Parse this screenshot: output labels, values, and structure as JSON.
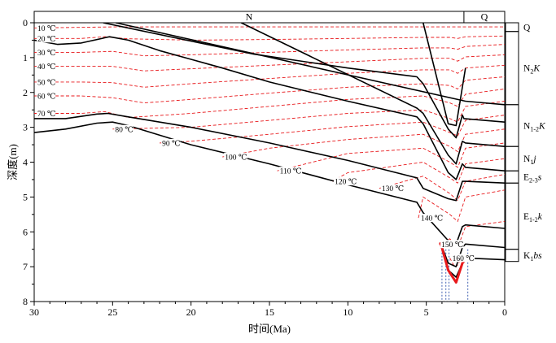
{
  "chart_data": {
    "type": "line",
    "title": "",
    "xlabel": "时间(Ma)",
    "ylabel": "深度(m)",
    "xlim": [
      30,
      0
    ],
    "ylim": [
      0,
      8
    ],
    "x_reversed": true,
    "y_reversed": true,
    "x_ticks": [
      30,
      25,
      20,
      15,
      10,
      5,
      0
    ],
    "y_ticks": [
      0,
      1,
      2,
      3,
      4,
      5,
      6,
      7,
      8
    ],
    "colors": {
      "burial_line": "#000000",
      "isotherm": "#e8191c",
      "source_rock": "#e8191c",
      "marker": "#2a4fa8"
    },
    "period_bar": [
      {
        "label": "N",
        "from": 30,
        "to": 2.6
      },
      {
        "label": "Q",
        "from": 2.6,
        "to": 0
      }
    ],
    "isotherms": [
      {
        "label": "10 ℃",
        "temp": 10,
        "x": [
          30,
          25,
          20,
          15,
          10,
          5.2,
          3.5,
          3,
          2.5,
          0
        ],
        "y": [
          0.15,
          0.12,
          0.12,
          0.12,
          0.12,
          0.12,
          0.12,
          0.12,
          0.12,
          0.12
        ]
      },
      {
        "label": "20 ℃",
        "temp": 20,
        "x": [
          30,
          27,
          25.5,
          24,
          20,
          15,
          10,
          5.2,
          3.5,
          3,
          2.5,
          0
        ],
        "y": [
          0.45,
          0.45,
          0.4,
          0.46,
          0.5,
          0.48,
          0.45,
          0.42,
          0.42,
          0.45,
          0.4,
          0.38
        ]
      },
      {
        "label": "30 ℃",
        "temp": 30,
        "x": [
          30,
          27,
          25,
          23,
          20,
          15,
          10,
          5.2,
          3.5,
          3,
          2.5,
          0
        ],
        "y": [
          0.85,
          0.85,
          0.82,
          0.95,
          0.92,
          0.85,
          0.78,
          0.72,
          0.72,
          0.76,
          0.68,
          0.62
        ]
      },
      {
        "label": "40 ℃",
        "temp": 40,
        "x": [
          30,
          27,
          25,
          23,
          20,
          15,
          10,
          5.2,
          3.5,
          3,
          2.5,
          0
        ],
        "y": [
          1.25,
          1.25,
          1.25,
          1.38,
          1.32,
          1.22,
          1.12,
          1.02,
          1.02,
          1.1,
          0.98,
          0.92
        ]
      },
      {
        "label": "50 ℃",
        "temp": 50,
        "x": [
          30,
          27,
          25,
          23,
          20,
          15,
          10,
          5.2,
          3.5,
          3,
          2.5,
          0
        ],
        "y": [
          1.7,
          1.7,
          1.72,
          1.85,
          1.75,
          1.6,
          1.45,
          1.35,
          1.35,
          1.45,
          1.3,
          1.22
        ]
      },
      {
        "label": "60 ℃",
        "temp": 60,
        "x": [
          30,
          27,
          25,
          23,
          20,
          15,
          10,
          5.2,
          3.5,
          3,
          2.5,
          0
        ],
        "y": [
          2.1,
          2.1,
          2.15,
          2.3,
          2.2,
          2.02,
          1.85,
          1.75,
          1.8,
          1.9,
          1.65,
          1.55
        ]
      },
      {
        "label": "70 ℃",
        "temp": 70,
        "x": [
          30,
          27,
          25.5,
          24,
          20,
          15,
          10,
          5.2,
          3.5,
          3,
          2.5,
          0
        ],
        "y": [
          2.6,
          2.6,
          2.55,
          2.72,
          2.6,
          2.4,
          2.2,
          2.1,
          2.3,
          2.4,
          2.05,
          1.9
        ]
      },
      {
        "label": "80 ℃",
        "temp": 80,
        "x": [
          25,
          20,
          15,
          10,
          5.2,
          3.5,
          3,
          2.5,
          0
        ],
        "y": [
          3.05,
          3.0,
          2.8,
          2.6,
          2.5,
          2.75,
          2.85,
          2.4,
          2.25
        ]
      },
      {
        "label": "90 ℃",
        "temp": 90,
        "x": [
          22,
          20,
          15,
          10,
          5.2,
          3.5,
          3,
          2.5,
          0
        ],
        "y": [
          3.45,
          3.4,
          3.2,
          2.98,
          2.85,
          3.15,
          3.25,
          2.8,
          2.65
        ]
      },
      {
        "label": "100 ℃",
        "temp": 100,
        "x": [
          18,
          15,
          10,
          5.2,
          3.5,
          3,
          2.5,
          0
        ],
        "y": [
          3.85,
          3.6,
          3.35,
          3.2,
          3.55,
          3.7,
          3.2,
          3.05
        ]
      },
      {
        "label": "110 ℃",
        "temp": 110,
        "x": [
          14.5,
          10,
          5.2,
          3.5,
          3,
          2.5,
          0
        ],
        "y": [
          4.25,
          3.75,
          3.6,
          4.0,
          4.15,
          3.6,
          3.45
        ]
      },
      {
        "label": "120 ℃",
        "temp": 120,
        "x": [
          11,
          10,
          5.2,
          3.5,
          3,
          2.5,
          0
        ],
        "y": [
          4.55,
          4.3,
          4.0,
          4.45,
          4.6,
          4.05,
          3.9
        ]
      },
      {
        "label": "130 ℃",
        "temp": 130,
        "x": [
          8,
          5.2,
          3.5,
          3,
          2.5,
          0
        ],
        "y": [
          4.75,
          4.4,
          4.9,
          5.1,
          4.55,
          4.35
        ]
      },
      {
        "label": "140 ℃",
        "temp": 140,
        "x": [
          5.5,
          5.2,
          3.5,
          3,
          2.5,
          0
        ],
        "y": [
          5.6,
          5.0,
          5.5,
          5.7,
          5.0,
          4.8
        ]
      },
      {
        "label": "150 ℃",
        "temp": 150,
        "x": [
          4.2,
          3.5,
          3,
          2.5,
          0
        ],
        "y": [
          6.35,
          6.2,
          6.45,
          5.85,
          5.7
        ]
      },
      {
        "label": "160 ℃",
        "temp": 160,
        "x": [
          3.5,
          3.2,
          3,
          2.7
        ],
        "y": [
          6.75,
          7.0,
          6.95,
          6.7
        ]
      }
    ],
    "burial_lines": [
      {
        "x": [
          5.2,
          3.6,
          3.1,
          2.5
        ],
        "y": [
          0,
          2.9,
          2.95,
          1.3
        ]
      },
      {
        "x": [
          24.8,
          2.5,
          0
        ],
        "y": [
          0,
          2.25,
          2.35
        ]
      },
      {
        "x": [
          25.6,
          16,
          10,
          5.6,
          5.2,
          3.6,
          3.1,
          2.7,
          2.6,
          0
        ],
        "y": [
          0,
          0.9,
          1.3,
          1.55,
          1.75,
          3.05,
          3.3,
          2.65,
          2.75,
          2.85
        ]
      },
      {
        "x": [
          16.8,
          5.6,
          5.2,
          3.6,
          3.1,
          2.7,
          2.5,
          0
        ],
        "y": [
          0,
          2.45,
          2.6,
          3.8,
          4.05,
          3.4,
          3.45,
          3.55
        ]
      },
      {
        "x": [
          30,
          28.5,
          27,
          25.2,
          24,
          22,
          20,
          18,
          15,
          10,
          5.6,
          5.2,
          3.6,
          3.1,
          2.7,
          2.5,
          0
        ],
        "y": [
          0.5,
          0.62,
          0.58,
          0.4,
          0.5,
          0.8,
          1.05,
          1.3,
          1.7,
          2.25,
          2.7,
          2.9,
          4.3,
          4.5,
          4.05,
          4.15,
          4.25
        ]
      },
      {
        "x": [
          30,
          28,
          26,
          25.3,
          24,
          20,
          15,
          10,
          5.6,
          5.2,
          3.6,
          3.1,
          2.7,
          2.5,
          0
        ],
        "y": [
          2.75,
          2.75,
          2.62,
          2.6,
          2.7,
          3.0,
          3.45,
          3.95,
          4.45,
          4.75,
          5.05,
          5.1,
          4.55,
          4.55,
          4.6
        ]
      },
      {
        "x": [
          30,
          28,
          26,
          25,
          24,
          20,
          15,
          10,
          5.6,
          5.2,
          3.6,
          3.1,
          2.7,
          2.5,
          0
        ],
        "y": [
          3.15,
          3.05,
          2.88,
          2.85,
          2.95,
          3.5,
          4.05,
          4.65,
          5.15,
          5.45,
          6.25,
          6.35,
          5.85,
          5.8,
          5.9
        ]
      },
      {
        "x": [
          4.1,
          3.6,
          3.1,
          2.7,
          2.5,
          0
        ],
        "y": [
          6.3,
          6.9,
          7.0,
          6.45,
          6.35,
          6.45
        ]
      },
      {
        "x": [
          3.6,
          3.1,
          2.7,
          2.5,
          0
        ],
        "y": [
          7.1,
          7.3,
          6.9,
          6.75,
          6.8
        ]
      }
    ],
    "source_rock_line": {
      "x": [
        4.1,
        3.6,
        3.1,
        2.7,
        2.4
      ],
      "y": [
        6.3,
        7.1,
        7.45,
        6.9,
        6.75
      ]
    },
    "marker_lines_x": [
      4.0,
      3.75,
      3.55,
      2.35
    ],
    "marker_bottom_y": 8,
    "strat_column": [
      {
        "label": "Q",
        "top": 0.0,
        "bottom": 0.25
      },
      {
        "label": "N2K",
        "top": 0.25,
        "bottom": 2.35
      },
      {
        "label": "N1-2K",
        "top": 2.35,
        "bottom": 3.55
      },
      {
        "label": "N1j",
        "top": 3.55,
        "bottom": 4.25
      },
      {
        "label": "E2-3s",
        "top": 4.25,
        "bottom": 4.6
      },
      {
        "label": "E1-2k",
        "top": 4.6,
        "bottom": 6.5
      },
      {
        "label": "K1bs",
        "top": 6.5,
        "bottom": 6.85
      }
    ]
  }
}
